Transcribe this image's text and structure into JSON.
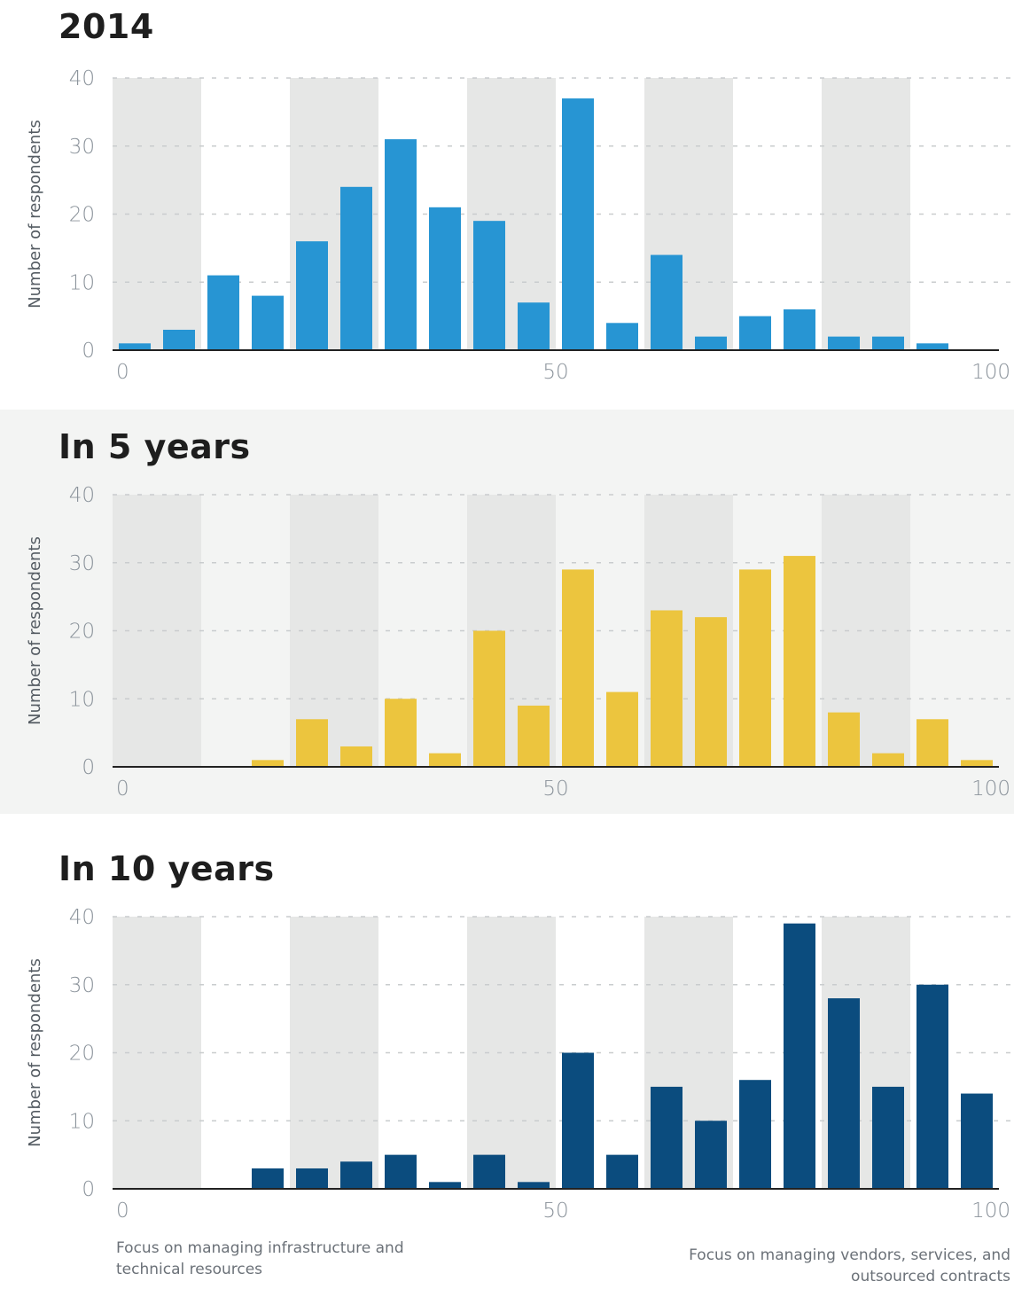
{
  "colors": {
    "band": "#e6e7e6",
    "grid": "#c9ccce",
    "axis": "#222222",
    "series_2014": "#2795d3",
    "series_5y": "#ecc53e",
    "series_10y": "#0b4c7e"
  },
  "annotations": {
    "left": "Focus on managing infrastructure and technical resources",
    "right": "Focus on managing vendors, services, and outsourced contracts"
  },
  "chart_data": [
    {
      "type": "bar",
      "title": "2014",
      "ylabel": "Number of respondents",
      "xlim": [
        0,
        100
      ],
      "ylim": [
        0,
        40
      ],
      "xticks": [
        0,
        50,
        100
      ],
      "yticks": [
        0,
        10,
        20,
        30,
        40
      ],
      "grid": true,
      "x": [
        2.5,
        7.5,
        12.5,
        17.5,
        22.5,
        27.5,
        32.5,
        37.5,
        42.5,
        47.5,
        52.5,
        57.5,
        62.5,
        67.5,
        72.5,
        77.5,
        82.5,
        87.5,
        92.5,
        97.5
      ],
      "values": [
        1,
        3,
        11,
        8,
        16,
        24,
        31,
        21,
        19,
        7,
        37,
        4,
        14,
        2,
        5,
        6,
        2,
        2,
        1,
        0
      ]
    },
    {
      "type": "bar",
      "title": "In 5 years",
      "ylabel": "Number of respondents",
      "xlim": [
        0,
        100
      ],
      "ylim": [
        0,
        40
      ],
      "xticks": [
        0,
        50,
        100
      ],
      "yticks": [
        0,
        10,
        20,
        30,
        40
      ],
      "grid": true,
      "x": [
        2.5,
        7.5,
        12.5,
        17.5,
        22.5,
        27.5,
        32.5,
        37.5,
        42.5,
        47.5,
        52.5,
        57.5,
        62.5,
        67.5,
        72.5,
        77.5,
        82.5,
        87.5,
        92.5,
        97.5
      ],
      "values": [
        0,
        0,
        0,
        1,
        7,
        3,
        10,
        2,
        20,
        9,
        29,
        11,
        23,
        22,
        29,
        31,
        8,
        2,
        7,
        1
      ]
    },
    {
      "type": "bar",
      "title": "In 10 years",
      "ylabel": "Number of respondents",
      "xlim": [
        0,
        100
      ],
      "ylim": [
        0,
        40
      ],
      "xticks": [
        0,
        50,
        100
      ],
      "yticks": [
        0,
        10,
        20,
        30,
        40
      ],
      "grid": true,
      "x": [
        2.5,
        7.5,
        12.5,
        17.5,
        22.5,
        27.5,
        32.5,
        37.5,
        42.5,
        47.5,
        52.5,
        57.5,
        62.5,
        67.5,
        72.5,
        77.5,
        82.5,
        87.5,
        92.5,
        97.5
      ],
      "values": [
        0,
        0,
        0,
        3,
        3,
        4,
        5,
        1,
        5,
        1,
        20,
        5,
        15,
        10,
        16,
        39,
        28,
        15,
        30,
        14
      ]
    }
  ]
}
